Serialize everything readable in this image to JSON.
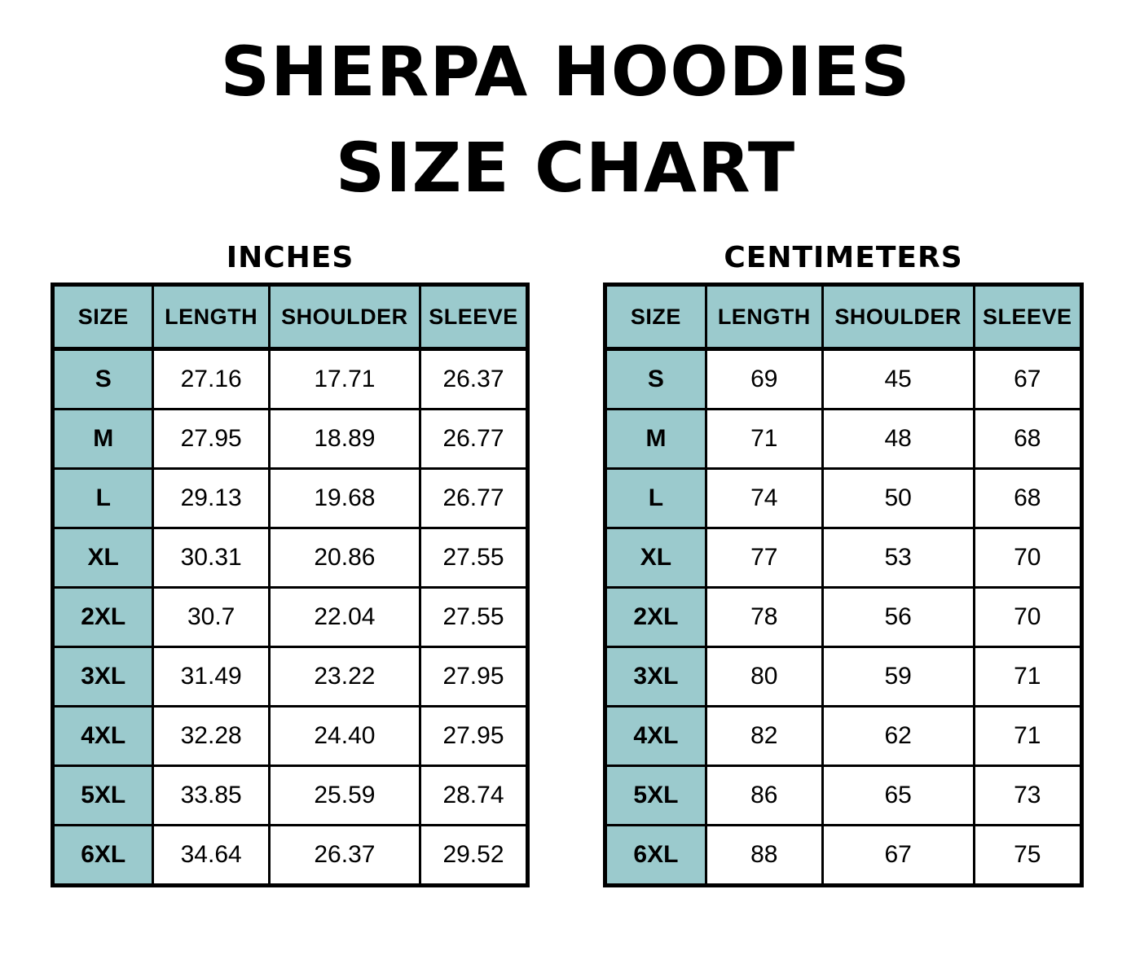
{
  "title": {
    "line1": "SHERPA HOODIES",
    "line2": "SIZE CHART"
  },
  "colors": {
    "header_fill": "#9bcacd",
    "table_border": "#000000",
    "cell_fill": "#ffffff",
    "text": "#000000",
    "background": "#ffffff"
  },
  "chart_data": [
    {
      "type": "table",
      "title": "INCHES",
      "columns": [
        "SIZE",
        "LENGTH",
        "SHOULDER",
        "SLEEVE"
      ],
      "rows": [
        [
          "S",
          "27.16",
          "17.71",
          "26.37"
        ],
        [
          "M",
          "27.95",
          "18.89",
          "26.77"
        ],
        [
          "L",
          "29.13",
          "19.68",
          "26.77"
        ],
        [
          "XL",
          "30.31",
          "20.86",
          "27.55"
        ],
        [
          "2XL",
          "30.7",
          "22.04",
          "27.55"
        ],
        [
          "3XL",
          "31.49",
          "23.22",
          "27.95"
        ],
        [
          "4XL",
          "32.28",
          "24.40",
          "27.95"
        ],
        [
          "5XL",
          "33.85",
          "25.59",
          "28.74"
        ],
        [
          "6XL",
          "34.64",
          "26.37",
          "29.52"
        ]
      ]
    },
    {
      "type": "table",
      "title": "CENTIMETERS",
      "columns": [
        "SIZE",
        "LENGTH",
        "SHOULDER",
        "SLEEVE"
      ],
      "rows": [
        [
          "S",
          "69",
          "45",
          "67"
        ],
        [
          "M",
          "71",
          "48",
          "68"
        ],
        [
          "L",
          "74",
          "50",
          "68"
        ],
        [
          "XL",
          "77",
          "53",
          "70"
        ],
        [
          "2XL",
          "78",
          "56",
          "70"
        ],
        [
          "3XL",
          "80",
          "59",
          "71"
        ],
        [
          "4XL",
          "82",
          "62",
          "71"
        ],
        [
          "5XL",
          "86",
          "65",
          "73"
        ],
        [
          "6XL",
          "88",
          "67",
          "75"
        ]
      ]
    }
  ]
}
